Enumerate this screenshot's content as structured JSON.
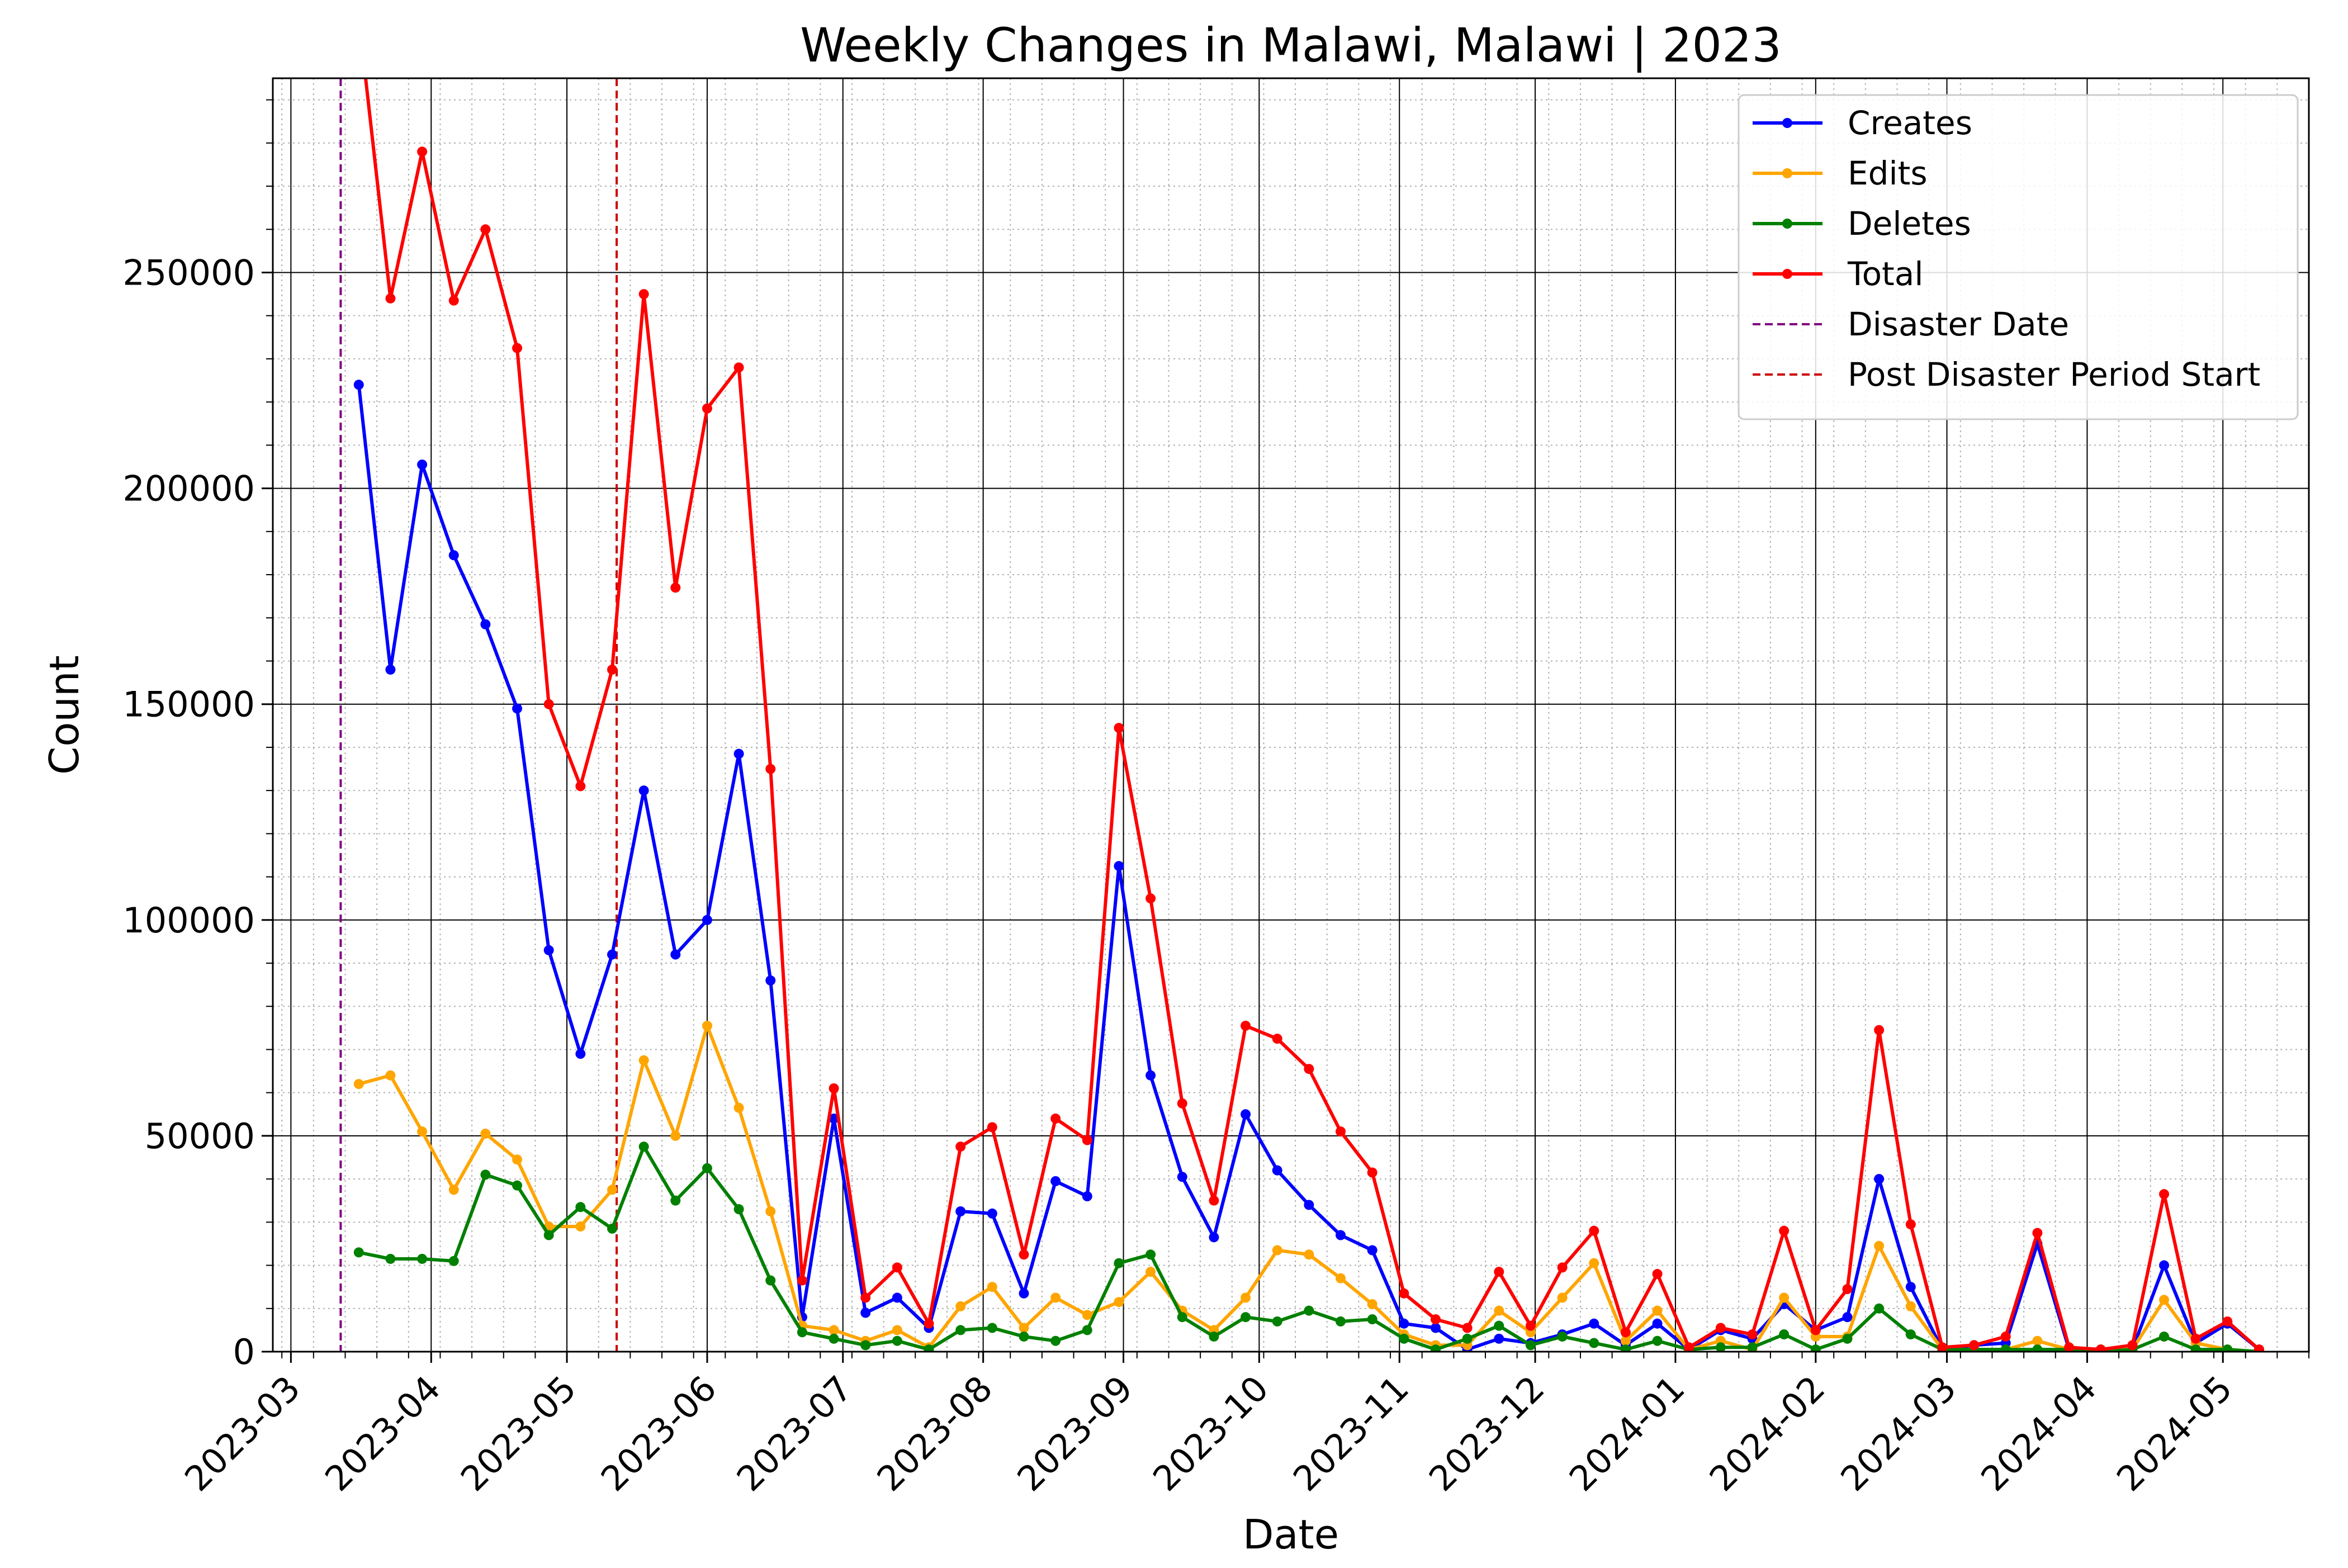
{
  "chart_data": {
    "type": "line",
    "title": "Weekly Changes in Malawi, Malawi | 2023",
    "xlabel": "Date",
    "ylabel": "Count",
    "xlim": [
      "2023-02-25",
      "2024-05-20"
    ],
    "ylim": [
      0,
      295000
    ],
    "yticks": [
      0,
      50000,
      100000,
      150000,
      200000,
      250000
    ],
    "xticks": [
      "2023-03-01",
      "2023-04-01",
      "2023-05-01",
      "2023-06-01",
      "2023-07-01",
      "2023-08-01",
      "2023-09-01",
      "2023-10-01",
      "2023-11-01",
      "2023-12-01",
      "2024-01-01",
      "2024-02-01",
      "2024-03-01",
      "2024-04-01",
      "2024-05-01"
    ],
    "xtick_labels": [
      "2023-03",
      "2023-04",
      "2023-05",
      "2023-06",
      "2023-07",
      "2023-08",
      "2023-09",
      "2023-10",
      "2023-11",
      "2023-12",
      "2024-01",
      "2024-02",
      "2024-03",
      "2024-04",
      "2024-05"
    ],
    "grid": true,
    "legend_position": "top-right",
    "x": [
      "2023-03-16",
      "2023-03-23",
      "2023-03-30",
      "2023-04-06",
      "2023-04-13",
      "2023-04-20",
      "2023-04-27",
      "2023-05-04",
      "2023-05-11",
      "2023-05-18",
      "2023-05-25",
      "2023-06-01",
      "2023-06-08",
      "2023-06-15",
      "2023-06-22",
      "2023-06-29",
      "2023-07-06",
      "2023-07-13",
      "2023-07-20",
      "2023-07-27",
      "2023-08-03",
      "2023-08-10",
      "2023-08-17",
      "2023-08-24",
      "2023-08-31",
      "2023-09-07",
      "2023-09-14",
      "2023-09-21",
      "2023-09-28",
      "2023-10-05",
      "2023-10-12",
      "2023-10-19",
      "2023-10-26",
      "2023-11-02",
      "2023-11-09",
      "2023-11-16",
      "2023-11-23",
      "2023-11-30",
      "2023-12-07",
      "2023-12-14",
      "2023-12-21",
      "2023-12-28",
      "2024-01-04",
      "2024-01-11",
      "2024-01-18",
      "2024-01-25",
      "2024-02-01",
      "2024-02-08",
      "2024-02-15",
      "2024-02-22",
      "2024-02-29",
      "2024-03-07",
      "2024-03-14",
      "2024-03-21",
      "2024-03-28",
      "2024-04-04",
      "2024-04-11",
      "2024-04-18",
      "2024-04-25",
      "2024-05-02",
      "2024-05-09"
    ],
    "series": [
      {
        "name": "Creates",
        "color": "#0000ff",
        "values": [
          224000,
          158000,
          205500,
          184500,
          168500,
          149000,
          93000,
          69000,
          92000,
          130000,
          92000,
          100000,
          138500,
          86000,
          8000,
          54000,
          9000,
          12500,
          5500,
          32500,
          32000,
          13500,
          39500,
          36000,
          112500,
          64000,
          40500,
          26500,
          55000,
          42000,
          34000,
          27000,
          23500,
          6500,
          5500,
          500,
          3000,
          2000,
          4000,
          6500,
          1500,
          6500,
          500,
          5000,
          3000,
          11000,
          5000,
          8000,
          40000,
          15000,
          500,
          1500,
          2000,
          25000,
          500,
          500,
          500,
          20000,
          2000,
          6500,
          500
        ]
      },
      {
        "name": "Edits",
        "color": "#ffa500",
        "values": [
          62000,
          64000,
          51000,
          37500,
          50500,
          44500,
          29000,
          29000,
          37500,
          67500,
          50000,
          75500,
          56500,
          32500,
          6000,
          5000,
          2500,
          5000,
          1000,
          10500,
          15000,
          5500,
          12500,
          8500,
          11500,
          18500,
          9500,
          5000,
          12500,
          23500,
          22500,
          17000,
          11000,
          4000,
          1500,
          1500,
          9500,
          4500,
          12500,
          20500,
          2500,
          9500,
          500,
          2500,
          500,
          12500,
          3500,
          3500,
          24500,
          10500,
          500,
          500,
          500,
          2500,
          500,
          500,
          500,
          12000,
          2000,
          500,
          0
        ]
      },
      {
        "name": "Deletes",
        "color": "#008000",
        "values": [
          23000,
          21500,
          21500,
          21000,
          41000,
          38500,
          27000,
          33500,
          28500,
          47500,
          35000,
          42500,
          33000,
          16500,
          4500,
          3000,
          1500,
          2500,
          500,
          5000,
          5500,
          3500,
          2500,
          5000,
          20500,
          22500,
          8000,
          3500,
          8000,
          7000,
          9500,
          7000,
          7500,
          3000,
          500,
          3000,
          6000,
          1500,
          3500,
          2000,
          500,
          2500,
          500,
          1000,
          1000,
          4000,
          500,
          3000,
          10000,
          4000,
          500,
          500,
          500,
          500,
          500,
          0,
          500,
          3500,
          500,
          500,
          0
        ]
      },
      {
        "name": "Total",
        "color": "#ff0000",
        "values": [
          309000,
          244000,
          278000,
          243500,
          260000,
          232500,
          150000,
          131000,
          158000,
          245000,
          177000,
          218500,
          228000,
          135000,
          16500,
          61000,
          12500,
          19500,
          6500,
          47500,
          52000,
          22500,
          54000,
          49000,
          144500,
          105000,
          57500,
          35000,
          75500,
          72500,
          65500,
          51000,
          41500,
          13500,
          7500,
          5500,
          18500,
          6000,
          19500,
          28000,
          4500,
          18000,
          1000,
          5500,
          4000,
          28000,
          5000,
          14500,
          74500,
          29500,
          1000,
          1500,
          3500,
          27500,
          1000,
          500,
          1500,
          36500,
          3000,
          7000,
          500
        ]
      }
    ],
    "vlines": [
      {
        "name": "Disaster Date",
        "x": "2023-03-12",
        "color": "#800080",
        "style": "dashed"
      },
      {
        "name": "Post Disaster Period Start",
        "x": "2023-05-12",
        "color": "#cc0000",
        "style": "dashed"
      }
    ]
  }
}
